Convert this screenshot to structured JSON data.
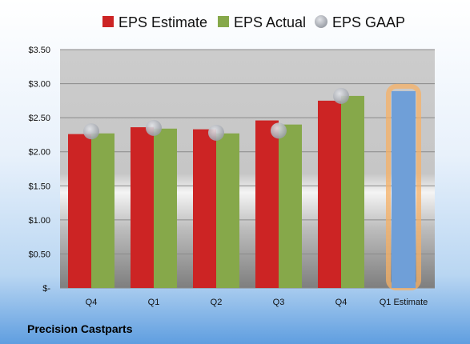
{
  "chart_data": {
    "type": "bar",
    "title": "",
    "xlabel": "",
    "ylabel": "",
    "categories": [
      "Q4",
      "Q1",
      "Q2",
      "Q3",
      "Q4",
      "Q1 Estimate"
    ],
    "ylim": [
      0,
      3.5
    ],
    "yticks": [
      {
        "value": 0,
        "label": "$-"
      },
      {
        "value": 0.5,
        "label": "$0.50"
      },
      {
        "value": 1.0,
        "label": "$1.00"
      },
      {
        "value": 1.5,
        "label": "$1.50"
      },
      {
        "value": 2.0,
        "label": "$2.00"
      },
      {
        "value": 2.5,
        "label": "$2.50"
      },
      {
        "value": 3.0,
        "label": "$3.00"
      },
      {
        "value": 3.5,
        "label": "$3.50"
      }
    ],
    "grid": true,
    "legend_position": "top",
    "series": [
      {
        "name": "EPS Estimate",
        "type": "bar",
        "color": "#cc2424",
        "values": [
          2.26,
          2.36,
          2.33,
          2.46,
          2.75,
          null
        ]
      },
      {
        "name": "EPS Actual",
        "type": "bar",
        "color": "#86a84a",
        "values": [
          2.27,
          2.34,
          2.27,
          2.4,
          2.82,
          null
        ]
      },
      {
        "name": "EPS GAAP",
        "type": "scatter",
        "color": "#b8bcc4",
        "values": [
          2.3,
          2.35,
          2.28,
          2.31,
          2.82,
          null
        ]
      }
    ],
    "estimate": {
      "category": "Q1 Estimate",
      "value": 2.89,
      "color": "#6f9fd8",
      "highlight": "#f5b066"
    }
  },
  "footer": {
    "company": "Precision Castparts"
  }
}
